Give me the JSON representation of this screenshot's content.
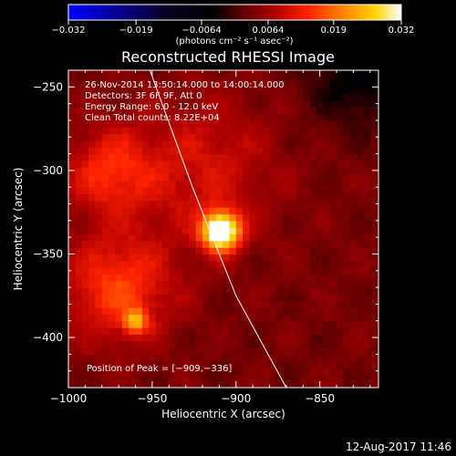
{
  "colors": {
    "background": "#000000",
    "foreground": "#ffffff",
    "limb_line": "#ffffff",
    "colormap_stops": [
      "#0000ff",
      "#0a0020",
      "#000000",
      "#5b0000",
      "#b00000",
      "#ff2200",
      "#ff8000",
      "#ffd200",
      "#ffffff"
    ]
  },
  "chart_data": {
    "type": "heatmap",
    "title": "Reconstructed RHESSI Image",
    "xlabel": "Heliocentric X (arcsec)",
    "ylabel": "Heliocentric Y (arcsec)",
    "xlim": [
      -1000,
      -815
    ],
    "ylim": [
      -430,
      -240
    ],
    "x_ticks": [
      -1000,
      -950,
      -900,
      -850
    ],
    "y_ticks": [
      -250,
      -300,
      -350,
      -400
    ],
    "x_tick_labels": [
      "−1000",
      "−950",
      "−900",
      "−850"
    ],
    "y_tick_labels": [
      "−250",
      "−300",
      "−350",
      "−400"
    ],
    "colorbar": {
      "min": -0.032,
      "max": 0.032,
      "ticks": [
        -0.032,
        -0.019,
        -0.0064,
        0.0064,
        0.019,
        0.032
      ],
      "tick_labels": [
        "−0.032",
        "−0.019",
        "−0.0064",
        "0.0064",
        "0.019",
        "0.032"
      ],
      "unit_label": "(photons cm⁻² s⁻¹ asec⁻²)"
    },
    "annotations": [
      "26-Nov-2014 13:50:14.000 to 14:00:14.000",
      "Detectors: 3F 6F 9F, Att 0",
      "Energy Range: 6.0 - 12.0 keV",
      "Clean     Total counts: 8.22E+04"
    ],
    "peak_label": "Position of Peak = [−909,−336]",
    "peak": {
      "x": -909,
      "y": -336
    },
    "sources": [
      {
        "x": -909,
        "y": -336,
        "amp": 1.0,
        "sigma": 8
      },
      {
        "x": -960,
        "y": -390,
        "amp": 0.45,
        "sigma": 5
      },
      {
        "x": -970,
        "y": -370,
        "amp": 0.35,
        "sigma": 22
      },
      {
        "x": -975,
        "y": -300,
        "amp": 0.3,
        "sigma": 18
      },
      {
        "x": -920,
        "y": -300,
        "amp": 0.2,
        "sigma": 30
      }
    ],
    "background_level": 0.15,
    "negative_region": {
      "x": -828,
      "y": -245,
      "amp": -0.25,
      "sigma": 20
    },
    "limb_line": [
      [
        -955,
        -230
      ],
      [
        -926,
        -310
      ],
      [
        -900,
        -375
      ],
      [
        -870,
        -430
      ]
    ],
    "timestamp": "12-Aug-2017 11:46"
  }
}
